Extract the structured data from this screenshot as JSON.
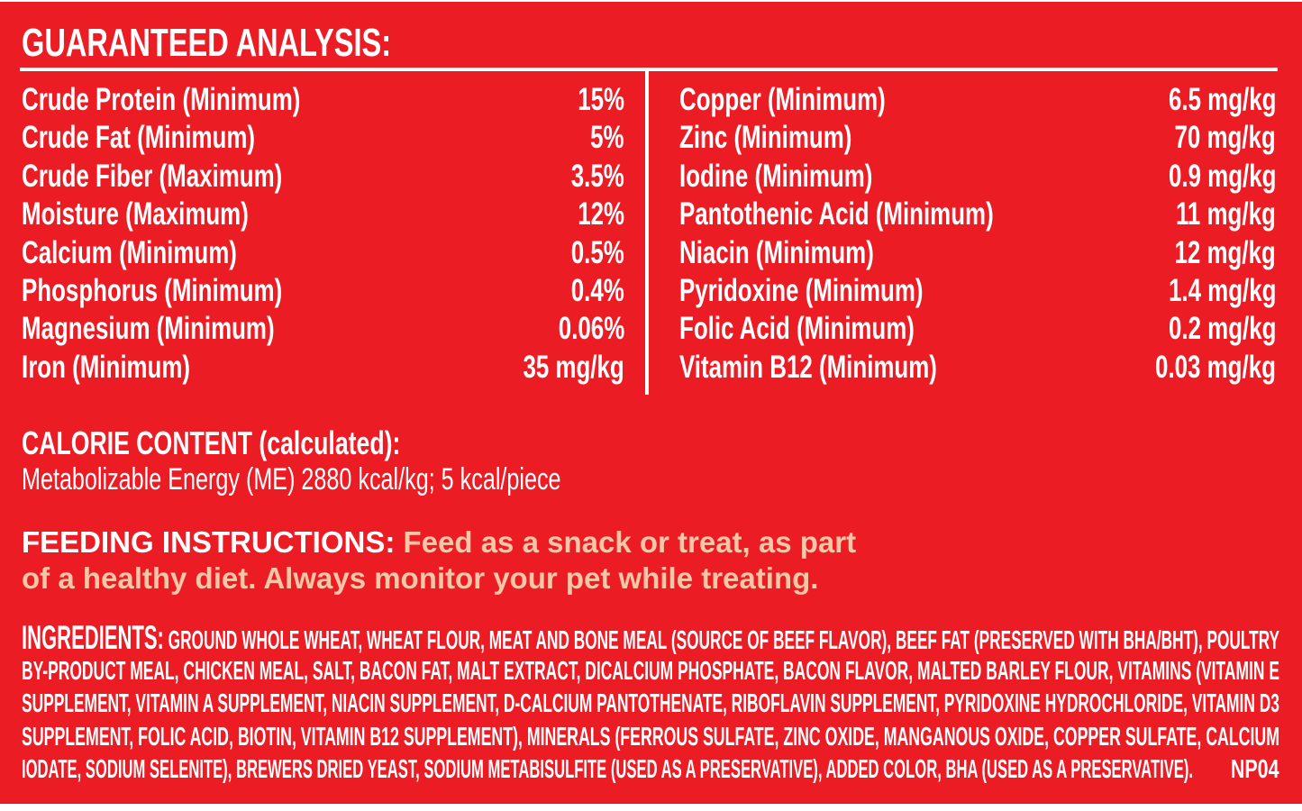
{
  "colors": {
    "background": "#ec1c24",
    "text": "#ffffff",
    "feeding_text": "#f6c7a6"
  },
  "guaranteed_analysis": {
    "title": "GUARANTEED ANALYSIS:",
    "left": [
      {
        "label": "Crude Protein (Minimum)",
        "value": "15%"
      },
      {
        "label": "Crude Fat (Minimum)",
        "value": "5%"
      },
      {
        "label": "Crude Fiber (Maximum)",
        "value": "3.5%"
      },
      {
        "label": "Moisture (Maximum)",
        "value": "12%"
      },
      {
        "label": "Calcium (Minimum)",
        "value": "0.5%"
      },
      {
        "label": "Phosphorus (Minimum)",
        "value": "0.4%"
      },
      {
        "label": "Magnesium (Minimum)",
        "value": "0.06%"
      },
      {
        "label": "Iron (Minimum)",
        "value": "35 mg/kg"
      }
    ],
    "right": [
      {
        "label": "Copper (Minimum)",
        "value": "6.5 mg/kg"
      },
      {
        "label": "Zinc (Minimum)",
        "value": "70 mg/kg"
      },
      {
        "label": "Iodine (Minimum)",
        "value": "0.9 mg/kg"
      },
      {
        "label": "Pantothenic Acid (Minimum)",
        "value": "11 mg/kg"
      },
      {
        "label": "Niacin (Minimum)",
        "value": "12 mg/kg"
      },
      {
        "label": "Pyridoxine (Minimum)",
        "value": "1.4 mg/kg"
      },
      {
        "label": "Folic Acid (Minimum)",
        "value": "0.2 mg/kg"
      },
      {
        "label": "Vitamin B12 (Minimum)",
        "value": "0.03 mg/kg"
      }
    ]
  },
  "calorie": {
    "heading": "CALORIE CONTENT (calculated):",
    "text": "Metabolizable Energy (ME) 2880 kcal/kg; 5 kcal/piece"
  },
  "feeding": {
    "heading": "FEEDING INSTRUCTIONS:",
    "line1": " Feed as a snack or treat, as part",
    "line2": "of a healthy diet. Always monitor your pet while treating."
  },
  "ingredients": {
    "heading": "INGREDIENTS:",
    "lines": [
      " GROUND WHOLE WHEAT, WHEAT FLOUR, MEAT AND BONE MEAL (SOURCE OF BEEF FLAVOR), BEEF FAT (PRESERVED WITH BHA/BHT), POULTRY",
      "BY-PRODUCT MEAL, CHICKEN MEAL, SALT, BACON FAT, MALT EXTRACT, DICALCIUM PHOSPHATE, BACON FLAVOR, MALTED BARLEY FLOUR, VITAMINS (VITAMIN E",
      "SUPPLEMENT, VITAMIN A SUPPLEMENT, NIACIN SUPPLEMENT, D-CALCIUM PANTOTHENATE, RIBOFLAVIN SUPPLEMENT, PYRIDOXINE HYDROCHLORIDE, VITAMIN D3",
      "SUPPLEMENT, FOLIC ACID, BIOTIN, VITAMIN B12 SUPPLEMENT), MINERALS (FERROUS SULFATE, ZINC OXIDE, MANGANOUS OXIDE, COPPER SULFATE, CALCIUM",
      "IODATE, SODIUM SELENITE), BREWERS DRIED YEAST, SODIUM METABISULFITE (USED AS A PRESERVATIVE), ADDED COLOR, BHA (USED AS A PRESERVATIVE)."
    ],
    "code": "NP04"
  }
}
